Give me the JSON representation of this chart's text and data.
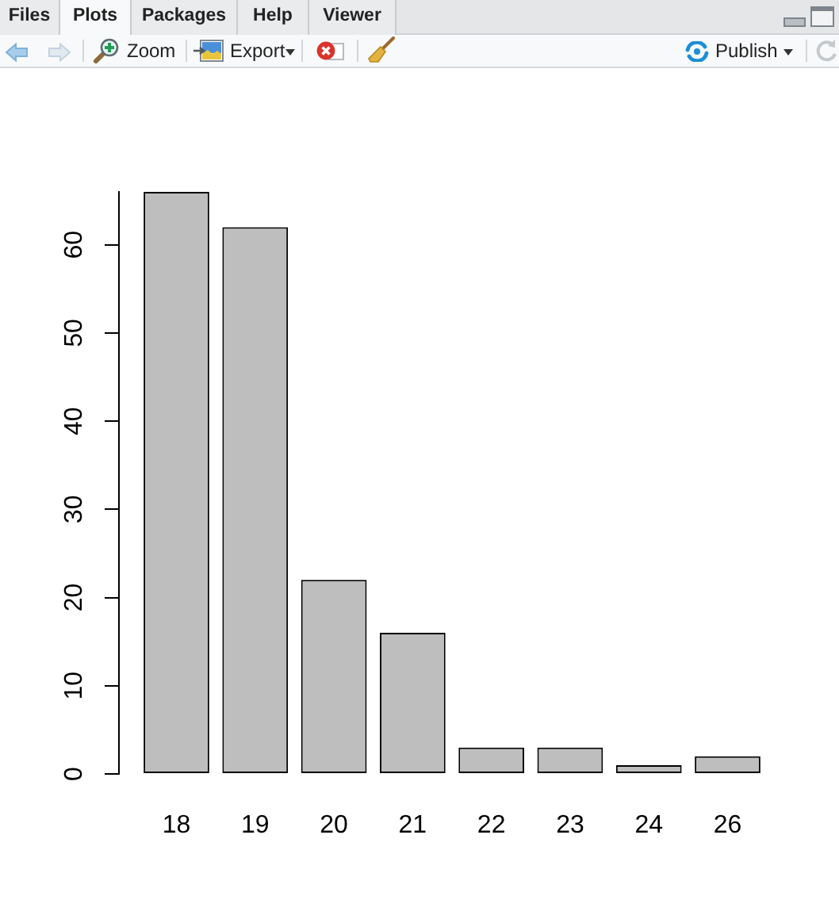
{
  "chart_data": {
    "type": "bar",
    "categories": [
      "18",
      "19",
      "20",
      "21",
      "22",
      "23",
      "24",
      "26"
    ],
    "values": [
      66,
      62,
      22,
      16,
      3,
      3,
      1,
      2
    ],
    "color": "#bebebe",
    "ylim": [
      0,
      66
    ],
    "yticks": [
      0,
      10,
      20,
      30,
      40,
      50,
      60
    ],
    "grid": false,
    "annotations": [
      "Files",
      "Plots",
      "Packages",
      "Help",
      "Viewer",
      "Zoom",
      "Export",
      "Publish"
    ]
  }
}
